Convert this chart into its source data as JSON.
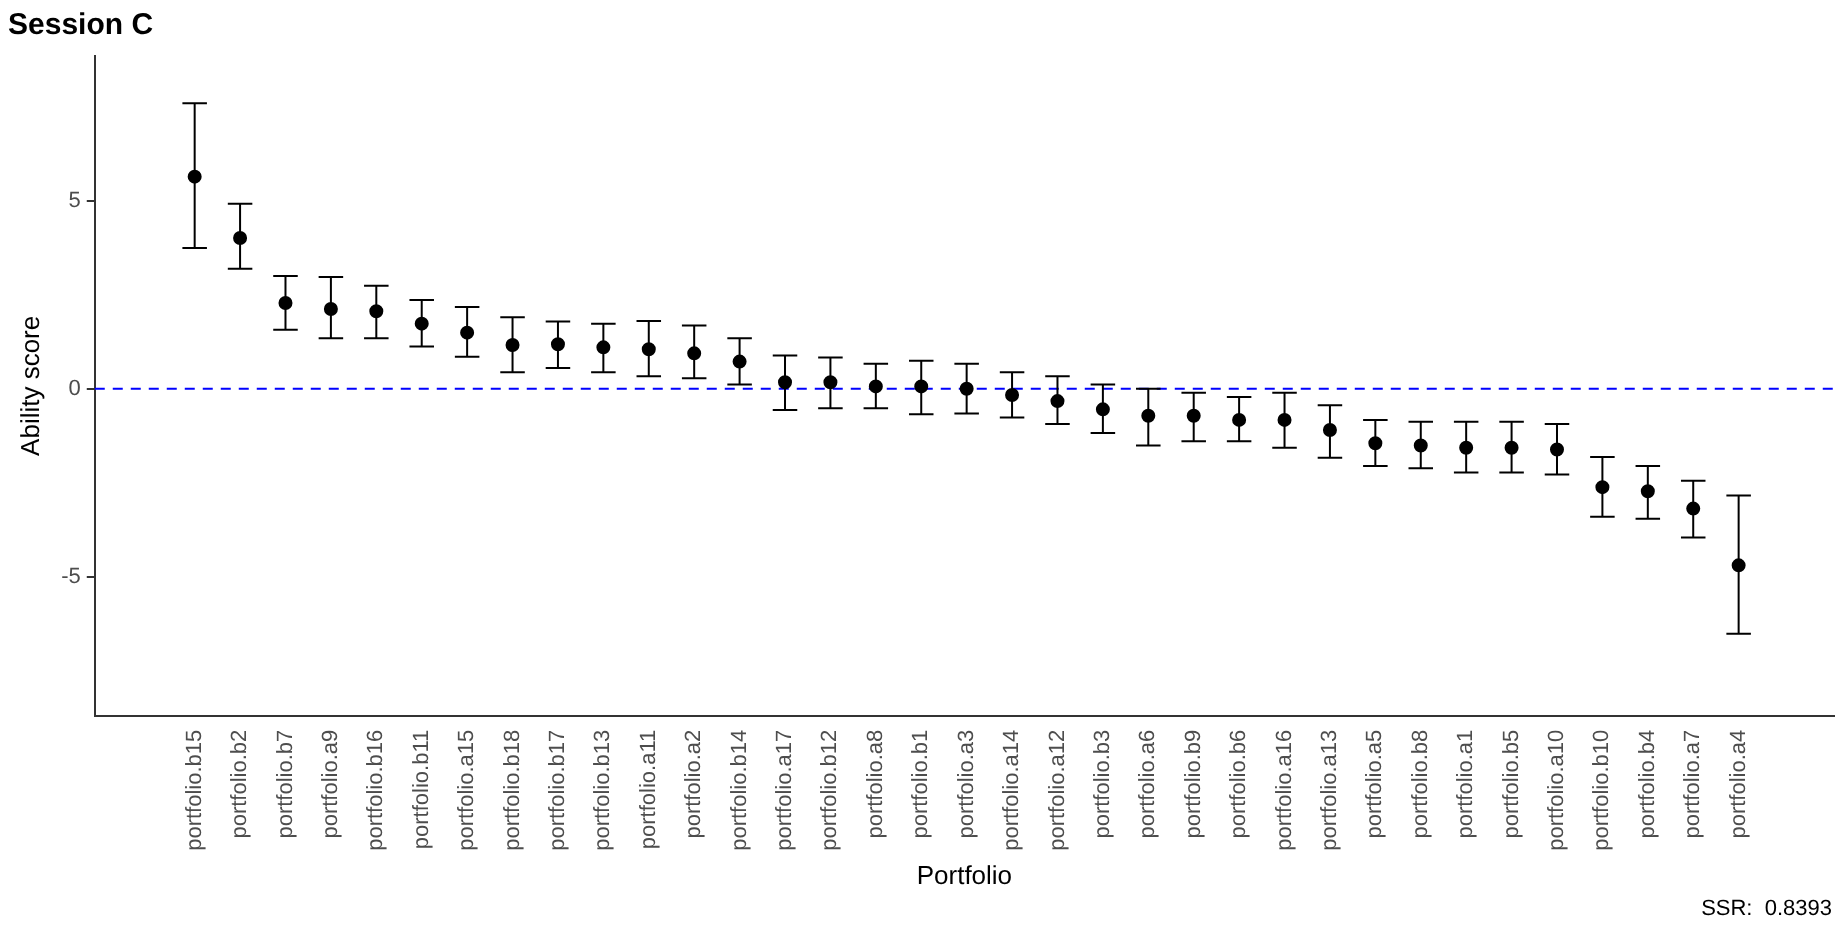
{
  "chart_data": {
    "type": "scatter",
    "title": "Session C",
    "xlabel": "Portfolio",
    "ylabel": "Ability score",
    "annotations": [
      "SSR:  0.8393"
    ],
    "categories": [
      "portfolio.b15",
      "portfolio.b2",
      "portfolio.b7",
      "portfolio.a9",
      "portfolio.b16",
      "portfolio.b11",
      "portfolio.a15",
      "portfolio.b18",
      "portfolio.b17",
      "portfolio.b13",
      "portfolio.a11",
      "portfolio.a2",
      "portfolio.b14",
      "portfolio.a17",
      "portfolio.b12",
      "portfolio.a8",
      "portfolio.b1",
      "portfolio.a3",
      "portfolio.a14",
      "portfolio.a12",
      "portfolio.b3",
      "portfolio.a6",
      "portfolio.b9",
      "portfolio.b6",
      "portfolio.a16",
      "portfolio.a13",
      "portfolio.a5",
      "portfolio.b8",
      "portfolio.a1",
      "portfolio.b5",
      "portfolio.a10",
      "portfolio.b10",
      "portfolio.b4",
      "portfolio.a7",
      "portfolio.a4"
    ],
    "series": [
      {
        "color": "#000000",
        "values": [
          5.64,
          4.01,
          2.28,
          2.12,
          2.06,
          1.73,
          1.49,
          1.16,
          1.18,
          1.1,
          1.05,
          0.94,
          0.72,
          0.17,
          0.17,
          0.06,
          0.06,
          0.0,
          -0.17,
          -0.33,
          -0.55,
          -0.72,
          -0.72,
          -0.83,
          -0.83,
          -1.1,
          -1.45,
          -1.51,
          -1.57,
          -1.57,
          -1.62,
          -2.62,
          -2.73,
          -3.19,
          -4.7
        ],
        "errors": [
          [
            3.74,
            7.59
          ],
          [
            3.19,
            4.92
          ],
          [
            1.57,
            3.0
          ],
          [
            1.34,
            2.97
          ],
          [
            1.34,
            2.74
          ],
          [
            1.12,
            2.36
          ],
          [
            0.85,
            2.17
          ],
          [
            0.44,
            1.9
          ],
          [
            0.55,
            1.79
          ],
          [
            0.44,
            1.73
          ],
          [
            0.33,
            1.8
          ],
          [
            0.28,
            1.68
          ],
          [
            0.11,
            1.34
          ],
          [
            -0.57,
            0.88
          ],
          [
            -0.52,
            0.83
          ],
          [
            -0.52,
            0.66
          ],
          [
            -0.68,
            0.74
          ],
          [
            -0.66,
            0.66
          ],
          [
            -0.77,
            0.44
          ],
          [
            -0.94,
            0.33
          ],
          [
            -1.18,
            0.11
          ],
          [
            -1.51,
            0.0
          ],
          [
            -1.4,
            -0.11
          ],
          [
            -1.4,
            -0.22
          ],
          [
            -1.57,
            -0.11
          ],
          [
            -1.84,
            -0.44
          ],
          [
            -2.06,
            -0.83
          ],
          [
            -2.12,
            -0.88
          ],
          [
            -2.23,
            -0.88
          ],
          [
            -2.23,
            -0.88
          ],
          [
            -2.28,
            -0.94
          ],
          [
            -3.41,
            -1.82
          ],
          [
            -3.46,
            -2.06
          ],
          [
            -3.96,
            -2.45
          ],
          [
            -6.52,
            -2.84
          ]
        ]
      }
    ],
    "ylim": [
      -8.7,
      8.85
    ],
    "yticks": [
      -5,
      0,
      5
    ],
    "grid": false,
    "legend": false,
    "marker": "circle",
    "ref_lines": [
      {
        "axis": "y",
        "value": 0,
        "color": "#0000ff",
        "line_style": "dashed"
      }
    ]
  }
}
